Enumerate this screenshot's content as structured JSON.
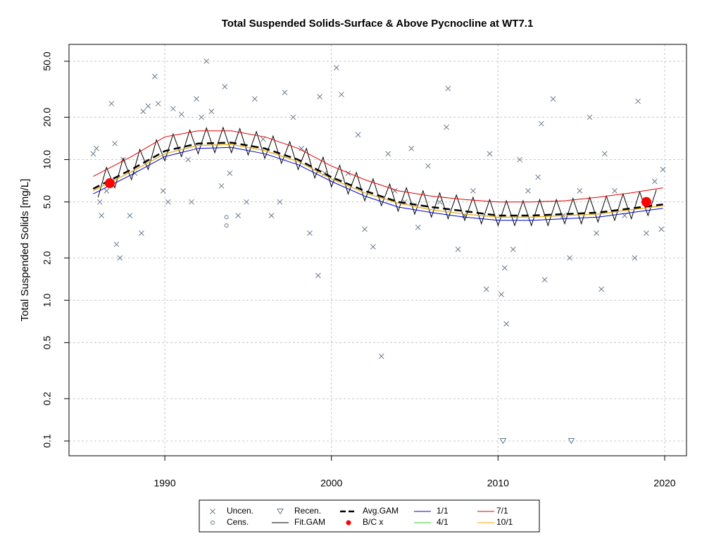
{
  "chart_data": {
    "type": "scatter",
    "title": "Total Suspended Solids-Surface & Above Pycnocline at WT7.1",
    "y_label": "Total Suspended Solids [mg/L]",
    "log_y": true,
    "grid": true,
    "legend": "bottom",
    "xlim": [
      1984.25,
      2021.31
    ],
    "xticks": [
      1990,
      2000,
      2010,
      2020
    ],
    "ylim": [
      0.0785,
      65.9
    ],
    "yticks": [
      0.1,
      0.2,
      0.5,
      {
        "value": 1,
        "label": "1.0"
      },
      {
        "value": 2,
        "label": "2.0"
      },
      {
        "value": 5,
        "label": "5.0"
      },
      {
        "value": 10,
        "label": "10.0"
      },
      {
        "value": 20,
        "label": "20.0"
      },
      {
        "value": 50,
        "label": "50.0"
      }
    ],
    "series": [
      {
        "name": "Uncen.",
        "color": "#6a7a8c",
        "marker": "x",
        "x": [
          1985.7,
          1985.9,
          1986.1,
          1986.2,
          1986.5,
          1986.8,
          1987.0,
          1987.1,
          1987.3,
          1987.5,
          1987.9,
          1988.2,
          1988.6,
          1988.7,
          1989.0,
          1989.4,
          1989.6,
          1989.9,
          1990.2,
          1990.5,
          1991.0,
          1991.4,
          1991.6,
          1991.9,
          1992.2,
          1992.5,
          1992.8,
          1993.4,
          1993.6,
          1993.9,
          1994.4,
          1994.9,
          1995.4,
          1995.9,
          1996.4,
          1996.9,
          1997.2,
          1997.7,
          1998.2,
          1998.7,
          1999.2,
          1999.3,
          1999.6,
          2000.3,
          2000.6,
          2001.0,
          2001.6,
          2002.0,
          2002.5,
          2003.0,
          2003.4,
          2003.8,
          2004.4,
          2004.8,
          2005.2,
          2005.8,
          2006.5,
          2006.9,
          2007.0,
          2007.6,
          2008.0,
          2008.5,
          2009.3,
          2009.5,
          2010.2,
          2010.4,
          2010.5,
          2010.9,
          2011.3,
          2011.8,
          2012.4,
          2012.6,
          2012.8,
          2013.3,
          2013.9,
          2014.3,
          2014.9,
          2015.5,
          2015.9,
          2016.2,
          2016.4,
          2017.0,
          2017.6,
          2018.2,
          2018.4,
          2018.9,
          2019.4,
          2019.8,
          2019.9
        ],
        "values": [
          11,
          12,
          5,
          4,
          6,
          25,
          13,
          2.5,
          2,
          10,
          4,
          8,
          3,
          22,
          24,
          39,
          25,
          6,
          5,
          23,
          21,
          10,
          5,
          27,
          20,
          50,
          22,
          6.5,
          33,
          8,
          4,
          5,
          27,
          14,
          4,
          5,
          30,
          20,
          12,
          3,
          1.5,
          28,
          8,
          45,
          29,
          8,
          15,
          3.2,
          2.4,
          0.4,
          11,
          6,
          5,
          12,
          3.3,
          9,
          5,
          17,
          32,
          2.3,
          4,
          6,
          1.2,
          11,
          1.1,
          1.7,
          0.68,
          2.3,
          10,
          6,
          7.5,
          18,
          1.4,
          27,
          4,
          2,
          6,
          20,
          3,
          1.2,
          11,
          6,
          4,
          2,
          26,
          3,
          7,
          3.2,
          8.5
        ]
      },
      {
        "name": "Cens.",
        "color": "#6a7a8c",
        "marker": "o",
        "x": [
          1993.7,
          1993.7
        ],
        "values": [
          3.4,
          3.9
        ]
      },
      {
        "name": "Recen.",
        "color": "#6a7a8c",
        "marker": "v",
        "x": [
          2010.3,
          2014.4
        ],
        "values": [
          0.1,
          0.1
        ]
      },
      {
        "name": "Fit.GAM",
        "color": "#000000",
        "line": "solid",
        "x": [
          1986,
          1986.5,
          1987,
          1987.5,
          1988,
          1988.5,
          1989,
          1989.5,
          1990,
          1990.5,
          1991,
          1991.5,
          1992,
          1992.5,
          1993,
          1993.5,
          1994,
          1994.5,
          1995,
          1995.5,
          1996,
          1996.5,
          1997,
          1997.5,
          1998,
          1998.5,
          1999,
          1999.5,
          2000,
          2000.5,
          2001,
          2001.5,
          2002,
          2002.5,
          2003,
          2003.5,
          2004,
          2004.5,
          2005,
          2005.5,
          2006,
          2006.5,
          2007,
          2007.5,
          2008,
          2008.5,
          2009,
          2009.5,
          2010,
          2010.5,
          2011,
          2011.5,
          2012,
          2012.5,
          2013,
          2013.5,
          2014,
          2014.5,
          2015,
          2015.5,
          2016,
          2016.5,
          2017,
          2017.5,
          2018,
          2018.5,
          2019,
          2019.5
        ],
        "values": [
          5.4,
          8.8,
          6.3,
          10.2,
          7.2,
          11.8,
          8.5,
          13.8,
          9.8,
          15.2,
          10.5,
          16.2,
          11.0,
          16.8,
          11.2,
          16.9,
          11.2,
          16.6,
          10.8,
          15.8,
          10.2,
          14.7,
          9.4,
          13.4,
          8.5,
          12.0,
          7.4,
          10.4,
          6.4,
          9.1,
          5.7,
          8.1,
          5.1,
          7.3,
          4.7,
          6.7,
          4.3,
          6.3,
          4.1,
          6.0,
          3.9,
          5.8,
          3.8,
          5.6,
          3.7,
          5.4,
          3.5,
          5.2,
          3.4,
          5.1,
          3.4,
          5.1,
          3.4,
          5.2,
          3.4,
          5.2,
          3.5,
          5.3,
          3.5,
          5.4,
          3.6,
          5.5,
          3.7,
          5.7,
          3.8,
          5.9,
          4.0,
          6.1
        ]
      },
      {
        "name": "Avg.GAM",
        "color": "#000000",
        "line": "dashed",
        "x": [
          1985.7,
          1988,
          1990,
          1992,
          1994,
          1996,
          1998,
          2000,
          2002,
          2004,
          2006,
          2008,
          2010,
          2012,
          2014,
          2016,
          2018,
          2019.9
        ],
        "values": [
          6.2,
          8.5,
          11.5,
          13.0,
          13.2,
          12.0,
          10.0,
          7.5,
          6.0,
          5.0,
          4.6,
          4.3,
          4.0,
          4.0,
          4.1,
          4.2,
          4.5,
          4.8
        ]
      },
      {
        "name": "B/C x",
        "color": "#ff0000",
        "marker": "dot",
        "x": [
          1986.7,
          2018.9
        ],
        "values": [
          6.8,
          5.0
        ]
      },
      {
        "name": "1/1",
        "color": "#0000cd",
        "line": "solid",
        "x": [
          1985.7,
          1988,
          1990,
          1992,
          1994,
          1996,
          1998,
          2000,
          2002,
          2004,
          2006,
          2008,
          2010,
          2012,
          2014,
          2016,
          2018,
          2019.9
        ],
        "values": [
          5.7,
          7.8,
          10.5,
          12.0,
          12.2,
          11.0,
          9.2,
          7.0,
          5.5,
          4.6,
          4.2,
          3.9,
          3.7,
          3.7,
          3.8,
          3.9,
          4.2,
          4.5
        ]
      },
      {
        "name": "4/1",
        "color": "#32cd32",
        "line": "solid",
        "x": [
          1985.7,
          1988,
          1990,
          1992,
          1994,
          1996,
          1998,
          2000,
          2002,
          2004,
          2006,
          2008,
          2010,
          2012,
          2014,
          2016,
          2018,
          2019.9
        ],
        "values": [
          6.0,
          8.2,
          11.0,
          12.6,
          12.8,
          11.6,
          9.7,
          7.3,
          5.8,
          4.9,
          4.4,
          4.1,
          3.9,
          3.9,
          4.0,
          4.1,
          4.4,
          4.7
        ]
      },
      {
        "name": "7/1",
        "color": "#e00000",
        "line": "solid",
        "x": [
          1985.7,
          1988,
          1990,
          1992,
          1994,
          1996,
          1998,
          2000,
          2002,
          2004,
          2006,
          2008,
          2010,
          2012,
          2014,
          2016,
          2018,
          2019.9
        ],
        "values": [
          7.6,
          10.5,
          14.5,
          16.0,
          16.0,
          14.5,
          12.0,
          9.0,
          7.2,
          6.0,
          5.5,
          5.2,
          5.0,
          5.0,
          5.1,
          5.4,
          5.8,
          6.3
        ]
      },
      {
        "name": "10/1",
        "color": "#ffa500",
        "line": "solid",
        "x": [
          1985.7,
          1988,
          1990,
          1992,
          1994,
          1996,
          1998,
          2000,
          2002,
          2004,
          2006,
          2008,
          2010,
          2012,
          2014,
          2016,
          2018,
          2019.9
        ],
        "values": [
          6.0,
          8.2,
          11.0,
          12.6,
          12.8,
          11.6,
          9.7,
          7.3,
          5.8,
          4.9,
          4.4,
          4.1,
          3.9,
          3.9,
          4.0,
          4.1,
          4.4,
          4.7
        ]
      }
    ]
  }
}
